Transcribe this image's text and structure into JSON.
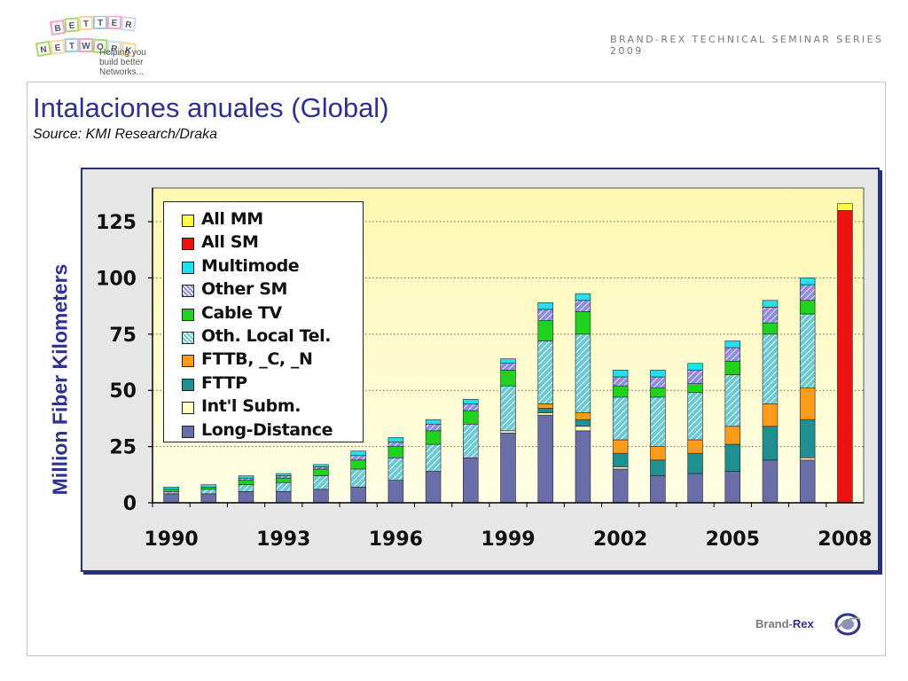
{
  "header": {
    "logo_letters": [
      "B",
      "E",
      "T",
      "T",
      "E",
      "R",
      "N",
      "E",
      "T",
      "W",
      "O",
      "R",
      "K"
    ],
    "logo_tagline_1": "Helping you",
    "logo_tagline_2": "build better Networks...",
    "series": "BRAND-REX TECHNICAL SEMINAR SERIES 2009"
  },
  "slide": {
    "title": "Intalaciones anuales (Global)",
    "subtitle": "Source: KMI Research/Draka"
  },
  "footer": {
    "brand_part1": "Brand-",
    "brand_part2": "Rex"
  },
  "colors": {
    "title": "#2e3192",
    "plot_bg_top": "#fdf8b0",
    "plot_bg_bottom": "#ffffe6",
    "panel": "#e6e6e6"
  },
  "chart_data": {
    "type": "bar",
    "stacked": true,
    "title": "",
    "ylabel": "Million Fiber Kilometers",
    "xlabel": "",
    "ylim": [
      0,
      140
    ],
    "yticks": [
      0,
      25,
      50,
      75,
      100,
      125
    ],
    "grid": "horizontal dotted",
    "legend_position": "top-left",
    "categories": [
      "1990",
      "1991",
      "1992",
      "1993",
      "1994",
      "1995",
      "1996",
      "1997",
      "1998",
      "1999",
      "2000",
      "2001",
      "2002",
      "2003",
      "2004",
      "2005",
      "2006",
      "2007",
      "2008"
    ],
    "xtick_labels": [
      "1990",
      "1993",
      "1996",
      "1999",
      "2002",
      "2005",
      "2008"
    ],
    "series": [
      {
        "name": "Long-Distance",
        "color": "#6a6ea8",
        "pattern": "solid",
        "values": [
          4,
          4,
          5,
          5,
          6,
          7,
          10,
          14,
          20,
          31,
          39,
          32,
          15,
          12,
          13,
          14,
          19,
          19,
          0
        ]
      },
      {
        "name": "Int'l Subm.",
        "color": "#ffffc0",
        "pattern": "solid",
        "values": [
          0,
          0,
          0,
          0,
          0,
          0,
          0,
          0,
          0,
          1,
          1,
          2,
          1,
          0,
          0,
          0,
          0,
          1,
          0
        ]
      },
      {
        "name": "FTTP",
        "color": "#1f8f8f",
        "pattern": "solid",
        "values": [
          0,
          0,
          0,
          0,
          0,
          0,
          0,
          0,
          0,
          0,
          2,
          3,
          6,
          7,
          9,
          12,
          15,
          17,
          0
        ]
      },
      {
        "name": "FTTB, _C, _N",
        "color": "#ff9a1c",
        "pattern": "solid",
        "values": [
          0,
          0,
          0,
          0,
          0,
          0,
          0,
          0,
          0,
          0,
          2,
          3,
          6,
          6,
          6,
          8,
          10,
          14,
          0
        ]
      },
      {
        "name": "Oth. Local Tel.",
        "color": "#6ec8d2",
        "pattern": "hatch",
        "values": [
          1,
          2,
          3,
          4,
          6,
          8,
          10,
          12,
          15,
          20,
          28,
          35,
          19,
          22,
          21,
          23,
          31,
          33,
          0
        ]
      },
      {
        "name": "Cable TV",
        "color": "#1ed21e",
        "pattern": "solid",
        "values": [
          1,
          1,
          2,
          2,
          3,
          4,
          5,
          6,
          6,
          7,
          9,
          10,
          5,
          4,
          4,
          6,
          5,
          6,
          0
        ]
      },
      {
        "name": "Other SM",
        "color": "#8c8ce0",
        "pattern": "hatch",
        "values": [
          0,
          0,
          1,
          1,
          1,
          2,
          2,
          3,
          3,
          3,
          5,
          5,
          4,
          5,
          6,
          6,
          7,
          7,
          0
        ]
      },
      {
        "name": "Multimode",
        "color": "#22e0ee",
        "pattern": "solid",
        "values": [
          1,
          1,
          1,
          1,
          1,
          2,
          2,
          2,
          2,
          2,
          3,
          3,
          3,
          3,
          3,
          3,
          3,
          3,
          0
        ]
      },
      {
        "name": "All SM",
        "color": "#ee1111",
        "pattern": "solid",
        "values": [
          0,
          0,
          0,
          0,
          0,
          0,
          0,
          0,
          0,
          0,
          0,
          0,
          0,
          0,
          0,
          0,
          0,
          0,
          130
        ]
      },
      {
        "name": "All MM",
        "color": "#ffff44",
        "pattern": "solid",
        "values": [
          0,
          0,
          0,
          0,
          0,
          0,
          0,
          0,
          0,
          0,
          0,
          0,
          0,
          0,
          0,
          0,
          0,
          0,
          3
        ]
      }
    ],
    "legend_order": [
      "All MM",
      "All SM",
      "Multimode",
      "Other SM",
      "Cable TV",
      "Oth. Local Tel.",
      "FTTB, _C, _N",
      "FTTP",
      "Int'l Subm.",
      "Long-Distance"
    ]
  }
}
